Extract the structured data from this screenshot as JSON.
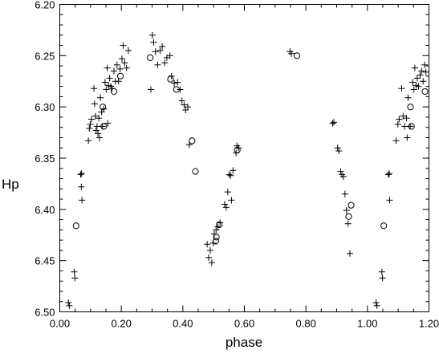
{
  "chart_data": {
    "type": "scatter",
    "xlabel": "phase",
    "ylabel": "Hp",
    "xlim": [
      0.0,
      1.2
    ],
    "ylim": [
      6.2,
      6.5
    ],
    "y_inverted": true,
    "grid": false,
    "x_ticks": [
      "0.00",
      "0.20",
      "0.40",
      "0.60",
      "0.80",
      "1.00",
      "1.20"
    ],
    "y_ticks": [
      "6.20",
      "6.25",
      "6.30",
      "6.35",
      "6.40",
      "6.45",
      "6.50"
    ],
    "series": [
      {
        "marker": "plus",
        "points": [
          [
            0.028,
            6.491
          ],
          [
            0.031,
            6.494
          ],
          [
            0.047,
            6.461
          ],
          [
            0.049,
            6.467
          ],
          [
            0.068,
            6.366
          ],
          [
            0.07,
            6.378
          ],
          [
            0.072,
            6.391
          ],
          [
            0.071,
            6.365
          ],
          [
            0.093,
            6.333
          ],
          [
            0.096,
            6.321
          ],
          [
            0.099,
            6.317
          ],
          [
            0.103,
            6.312
          ],
          [
            0.111,
            6.282
          ],
          [
            0.113,
            6.297
          ],
          [
            0.116,
            6.309
          ],
          [
            0.118,
            6.323
          ],
          [
            0.121,
            6.319
          ],
          [
            0.124,
            6.326
          ],
          [
            0.127,
            6.311
          ],
          [
            0.129,
            6.33
          ],
          [
            0.132,
            6.291
          ],
          [
            0.136,
            6.305
          ],
          [
            0.139,
            6.319
          ],
          [
            0.143,
            6.302
          ],
          [
            0.147,
            6.276
          ],
          [
            0.151,
            6.283
          ],
          [
            0.154,
            6.262
          ],
          [
            0.156,
            6.316
          ],
          [
            0.158,
            6.279
          ],
          [
            0.162,
            6.272
          ],
          [
            0.166,
            6.28
          ],
          [
            0.17,
            6.282
          ],
          [
            0.176,
            6.265
          ],
          [
            0.181,
            6.275
          ],
          [
            0.186,
            6.259
          ],
          [
            0.191,
            6.275
          ],
          [
            0.196,
            6.263
          ],
          [
            0.202,
            6.253
          ],
          [
            0.206,
            6.24
          ],
          [
            0.211,
            6.257
          ],
          [
            0.217,
            6.262
          ],
          [
            0.223,
            6.245
          ],
          [
            0.296,
            6.283
          ],
          [
            0.301,
            6.23
          ],
          [
            0.305,
            6.237
          ],
          [
            0.311,
            6.246
          ],
          [
            0.318,
            6.259
          ],
          [
            0.326,
            6.245
          ],
          [
            0.333,
            6.241
          ],
          [
            0.341,
            6.257
          ],
          [
            0.348,
            6.252
          ],
          [
            0.358,
            6.25
          ],
          [
            0.363,
            6.27
          ],
          [
            0.372,
            6.277
          ],
          [
            0.383,
            6.276
          ],
          [
            0.391,
            6.283
          ],
          [
            0.397,
            6.294
          ],
          [
            0.404,
            6.298
          ],
          [
            0.409,
            6.303
          ],
          [
            0.416,
            6.3
          ],
          [
            0.421,
            6.337
          ],
          [
            0.479,
            6.434
          ],
          [
            0.484,
            6.447
          ],
          [
            0.489,
            6.44
          ],
          [
            0.494,
            6.452
          ],
          [
            0.499,
            6.433
          ],
          [
            0.502,
            6.424
          ],
          [
            0.508,
            6.42
          ],
          [
            0.514,
            6.417
          ],
          [
            0.521,
            6.413
          ],
          [
            0.536,
            6.395
          ],
          [
            0.541,
            6.398
          ],
          [
            0.546,
            6.383
          ],
          [
            0.551,
            6.366
          ],
          [
            0.555,
            6.367
          ],
          [
            0.558,
            6.391
          ],
          [
            0.563,
            6.362
          ],
          [
            0.573,
            6.345
          ],
          [
            0.576,
            6.338
          ],
          [
            0.581,
            6.34
          ],
          [
            0.748,
            6.246
          ],
          [
            0.753,
            6.248
          ],
          [
            0.887,
            6.316
          ],
          [
            0.891,
            6.315
          ],
          [
            0.903,
            6.34
          ],
          [
            0.907,
            6.343
          ],
          [
            0.913,
            6.363
          ],
          [
            0.917,
            6.366
          ],
          [
            0.922,
            6.368
          ],
          [
            0.927,
            6.385
          ],
          [
            0.932,
            6.401
          ],
          [
            0.937,
            6.414
          ],
          [
            0.943,
            6.443
          ],
          [
            1.028,
            6.491
          ],
          [
            1.031,
            6.494
          ],
          [
            1.047,
            6.461
          ],
          [
            1.049,
            6.467
          ],
          [
            1.068,
            6.366
          ],
          [
            1.072,
            6.391
          ],
          [
            1.071,
            6.365
          ],
          [
            1.093,
            6.333
          ],
          [
            1.099,
            6.317
          ],
          [
            1.103,
            6.312
          ],
          [
            1.111,
            6.282
          ],
          [
            1.116,
            6.309
          ],
          [
            1.121,
            6.319
          ],
          [
            1.127,
            6.311
          ],
          [
            1.129,
            6.33
          ],
          [
            1.132,
            6.291
          ],
          [
            1.139,
            6.319
          ],
          [
            1.147,
            6.276
          ],
          [
            1.151,
            6.283
          ],
          [
            1.154,
            6.262
          ],
          [
            1.158,
            6.279
          ],
          [
            1.162,
            6.272
          ],
          [
            1.166,
            6.28
          ],
          [
            1.171,
            6.269
          ],
          [
            1.176,
            6.265
          ],
          [
            1.181,
            6.275
          ],
          [
            1.186,
            6.259
          ],
          [
            1.19,
            6.266
          ]
        ]
      },
      {
        "marker": "circle",
        "points": [
          [
            0.053,
            6.416
          ],
          [
            0.14,
            6.3
          ],
          [
            0.143,
            6.319
          ],
          [
            0.176,
            6.285
          ],
          [
            0.197,
            6.27
          ],
          [
            0.294,
            6.252
          ],
          [
            0.36,
            6.273
          ],
          [
            0.379,
            6.283
          ],
          [
            0.43,
            6.333
          ],
          [
            0.441,
            6.363
          ],
          [
            0.507,
            6.431
          ],
          [
            0.509,
            6.427
          ],
          [
            0.518,
            6.415
          ],
          [
            0.577,
            6.342
          ],
          [
            0.771,
            6.25
          ],
          [
            0.939,
            6.407
          ],
          [
            0.947,
            6.396
          ],
          [
            1.053,
            6.416
          ],
          [
            1.14,
            6.3
          ],
          [
            1.143,
            6.319
          ],
          [
            1.187,
            6.285
          ]
        ]
      }
    ]
  }
}
